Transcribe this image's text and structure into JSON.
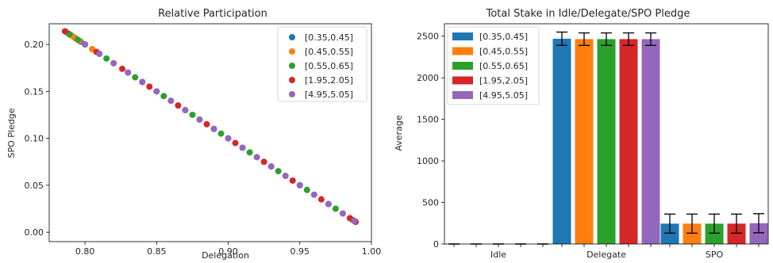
{
  "chart_data": [
    {
      "type": "scatter",
      "title": "Relative Participation",
      "xlabel": "Delegation",
      "ylabel": "SPO Pledge",
      "xlim": [
        0.775,
        1.0
      ],
      "ylim": [
        -0.01,
        0.222
      ],
      "xticks": [
        "0.80",
        "0.85",
        "0.90",
        "0.95",
        "1.00"
      ],
      "xtick_values": [
        0.8,
        0.85,
        0.9,
        0.95,
        1.0
      ],
      "yticks": [
        "0.00",
        "0.05",
        "0.10",
        "0.15",
        "0.20"
      ],
      "ytick_values": [
        0.0,
        0.05,
        0.1,
        0.15,
        0.2
      ],
      "legend_position": "top-right",
      "series": [
        {
          "name": "[0.35,0.45]",
          "color": "#1f77b4",
          "x": [
            0.787,
            0.79,
            0.793,
            0.797,
            0.8,
            0.81,
            0.83,
            0.85,
            0.87,
            0.89,
            0.91,
            0.93,
            0.95,
            0.97,
            0.988
          ],
          "y": [
            0.213,
            0.21,
            0.207,
            0.203,
            0.2,
            0.19,
            0.17,
            0.15,
            0.13,
            0.11,
            0.09,
            0.07,
            0.05,
            0.03,
            0.012
          ]
        },
        {
          "name": "[0.45,0.55]",
          "color": "#ff7f0e",
          "x": [
            0.788,
            0.792,
            0.796,
            0.805,
            0.82,
            0.84,
            0.86,
            0.88,
            0.9,
            0.92,
            0.94,
            0.96,
            0.98,
            0.988
          ],
          "y": [
            0.212,
            0.208,
            0.204,
            0.195,
            0.18,
            0.16,
            0.14,
            0.12,
            0.1,
            0.08,
            0.06,
            0.04,
            0.02,
            0.012
          ]
        },
        {
          "name": "[0.55,0.65]",
          "color": "#2ca02c",
          "x": [
            0.789,
            0.795,
            0.8,
            0.815,
            0.835,
            0.855,
            0.875,
            0.895,
            0.915,
            0.935,
            0.955,
            0.975,
            0.987
          ],
          "y": [
            0.211,
            0.205,
            0.2,
            0.185,
            0.165,
            0.145,
            0.125,
            0.105,
            0.085,
            0.065,
            0.045,
            0.025,
            0.013
          ]
        },
        {
          "name": "[1.95,2.05]",
          "color": "#d62728",
          "x": [
            0.786,
            0.808,
            0.826,
            0.845,
            0.865,
            0.885,
            0.905,
            0.925,
            0.945,
            0.965,
            0.985,
            0.989
          ],
          "y": [
            0.214,
            0.192,
            0.174,
            0.155,
            0.135,
            0.115,
            0.095,
            0.075,
            0.055,
            0.035,
            0.015,
            0.011
          ]
        },
        {
          "name": "[4.95,5.05]",
          "color": "#9467bd",
          "x": [
            0.8,
            0.81,
            0.82,
            0.83,
            0.84,
            0.85,
            0.86,
            0.87,
            0.88,
            0.89,
            0.9,
            0.91,
            0.92,
            0.93,
            0.94,
            0.95,
            0.96,
            0.97,
            0.98,
            0.988
          ],
          "y": [
            0.2,
            0.19,
            0.18,
            0.17,
            0.16,
            0.15,
            0.14,
            0.13,
            0.12,
            0.11,
            0.1,
            0.09,
            0.08,
            0.07,
            0.06,
            0.05,
            0.04,
            0.03,
            0.02,
            0.012
          ]
        }
      ]
    },
    {
      "type": "bar",
      "title": "Total Stake in Idle/Delegate/SPO Pledge",
      "xlabel": "",
      "ylabel": "Average",
      "categories": [
        "Idle",
        "Delegate",
        "SPO"
      ],
      "ylim": [
        0,
        2650
      ],
      "yticks": [
        "0",
        "500",
        "1000",
        "1500",
        "2000",
        "2500"
      ],
      "ytick_values": [
        0,
        500,
        1000,
        1500,
        2000,
        2500
      ],
      "legend_position": "top-left",
      "series": [
        {
          "name": "[0.35,0.45]",
          "color": "#1f77b4",
          "values": [
            0,
            2470,
            245
          ],
          "errors": [
            0,
            80,
            115
          ]
        },
        {
          "name": "[0.45,0.55]",
          "color": "#ff7f0e",
          "values": [
            0,
            2465,
            245
          ],
          "errors": [
            0,
            75,
            115
          ]
        },
        {
          "name": "[0.55,0.65]",
          "color": "#2ca02c",
          "values": [
            0,
            2465,
            245
          ],
          "errors": [
            0,
            75,
            115
          ]
        },
        {
          "name": "[1.95,2.05]",
          "color": "#d62728",
          "values": [
            0,
            2465,
            245
          ],
          "errors": [
            0,
            75,
            115
          ]
        },
        {
          "name": "[4.95,5.05]",
          "color": "#9467bd",
          "values": [
            0,
            2465,
            250
          ],
          "errors": [
            0,
            75,
            115
          ]
        }
      ]
    }
  ]
}
